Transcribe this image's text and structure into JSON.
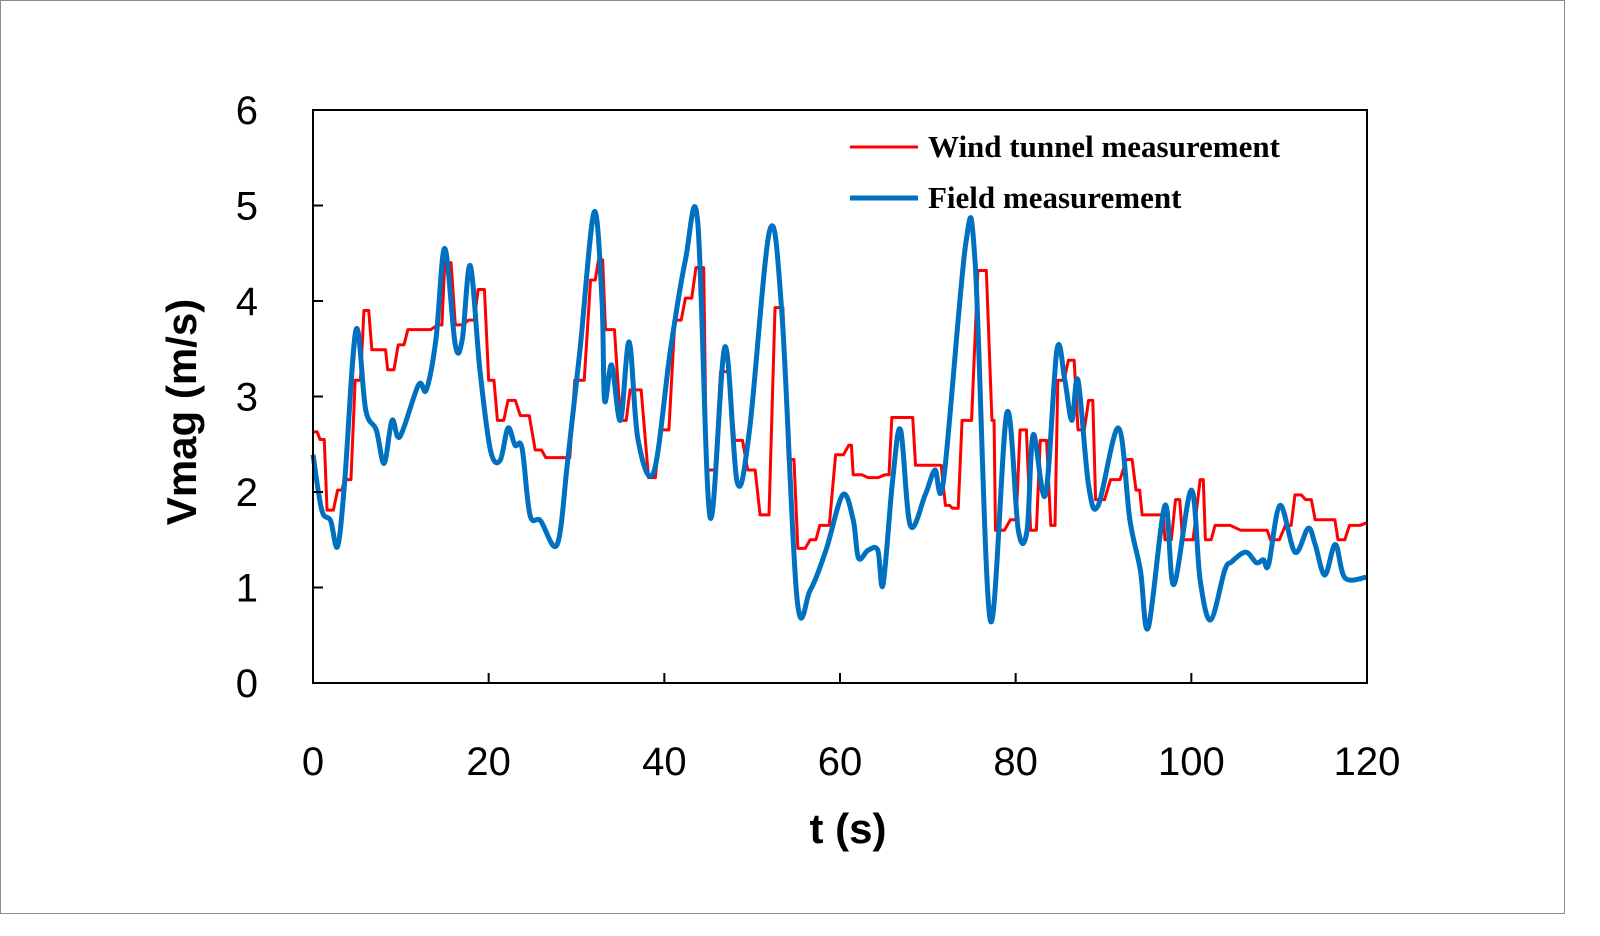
{
  "chart_data": {
    "type": "line",
    "title": "",
    "xlabel": "t (s)",
    "ylabel": "Vmag (m/s)",
    "xlim": [
      0,
      120
    ],
    "ylim": [
      0,
      6
    ],
    "xticks": [
      0,
      20,
      40,
      60,
      80,
      100,
      120
    ],
    "yticks": [
      0,
      1,
      2,
      3,
      4,
      5,
      6
    ],
    "grid": false,
    "legend_position": "top-right",
    "series": [
      {
        "name": "Wind tunnel measurement",
        "color": "#ff0000",
        "style": "step-noisy",
        "x": [
          0,
          0.8,
          1.6,
          2.8,
          3.6,
          4.8,
          5.8,
          6.7,
          7.9,
          8.5,
          9.7,
          10.8,
          12.2,
          14.2,
          15,
          16.2,
          17.7,
          18.8,
          20,
          21,
          22.2,
          23.6,
          25.3,
          26.5,
          28.4,
          29.8,
          31.6,
          32.5,
          33.3,
          35,
          36.1,
          38.2,
          39.5,
          41.2,
          42.4,
          43.6,
          44,
          44.8,
          46.4,
          48,
          49.5,
          50.9,
          52.6,
          54.1,
          55.2,
          56.6,
          57.7,
          59.5,
          61,
          61.5,
          63.2,
          65.1,
          65.9,
          67.8,
          68.6,
          70.8,
          72,
          72.8,
          73.9,
          75.7,
          77.3,
          77.7,
          79.4,
          80.5,
          81.7,
          82.8,
          84,
          84.8,
          86,
          87.1,
          88.3,
          89.1,
          90.8,
          92.6,
          93.7,
          94.4,
          96.5,
          97,
          98.2,
          99,
          101,
          101.6,
          102.7,
          105.6,
          108.1,
          109,
          110.7,
          111.8,
          113,
          114.1,
          115.8,
          116.7,
          118,
          120
        ],
        "y": [
          2.63,
          2.55,
          1.81,
          2.02,
          2.13,
          3.17,
          3.9,
          3.49,
          3.49,
          3.28,
          3.54,
          3.7,
          3.7,
          3.75,
          4.4,
          3.75,
          3.8,
          4.12,
          3.17,
          2.75,
          2.96,
          2.8,
          2.44,
          2.36,
          2.36,
          3.17,
          4.22,
          4.43,
          3.7,
          2.75,
          3.07,
          2.15,
          2.65,
          3.8,
          4.03,
          4.35,
          4.35,
          2.23,
          3.26,
          2.54,
          2.23,
          1.76,
          3.93,
          2.34,
          1.41,
          1.5,
          1.65,
          2.39,
          2.49,
          2.18,
          2.15,
          2.18,
          2.78,
          2.78,
          2.28,
          2.28,
          1.86,
          1.83,
          2.75,
          4.32,
          2.75,
          1.6,
          1.71,
          2.65,
          1.6,
          2.54,
          1.65,
          3.17,
          3.38,
          2.65,
          2.96,
          1.92,
          2.13,
          2.34,
          2.02,
          1.76,
          1.76,
          1.5,
          1.92,
          1.5,
          2.13,
          1.5,
          1.65,
          1.6,
          1.6,
          1.5,
          1.65,
          1.97,
          1.92,
          1.71,
          1.71,
          1.5,
          1.65,
          1.68
        ]
      },
      {
        "name": "Field measurement",
        "color": "#0070c0",
        "style": "smooth",
        "x": [
          0,
          1,
          2,
          2.8,
          3.6,
          4.9,
          6,
          7.2,
          8.1,
          9,
          9.9,
          12,
          12.9,
          14,
          15,
          16.2,
          17,
          17.9,
          19,
          20.2,
          21.3,
          22.2,
          23,
          23.8,
          24.7,
          25.9,
          27.8,
          29,
          30.4,
          32,
          32.9,
          33.2,
          34,
          35,
          36,
          37,
          38.8,
          40.7,
          42.4,
          43.8,
          45.2,
          46.9,
          48.3,
          49.7,
          52,
          53.4,
          55.1,
          56.6,
          58.4,
          60.3,
          61.5,
          62.1,
          63.2,
          64.3,
          64.9,
          66,
          66.9,
          68,
          69.7,
          70.8,
          71.8,
          74.3,
          75.4,
          77.1,
          79,
          80.3,
          81.3,
          82,
          83.4,
          84.7,
          85.6,
          86.4,
          87.1,
          88.3,
          89.4,
          91.7,
          93,
          94.2,
          95.1,
          97,
          98,
          100,
          101,
          102.2,
          103.8,
          104.6,
          106.2,
          107.4,
          108.2,
          108.8,
          110.1,
          111.8,
          113.3,
          114.1,
          115.2,
          116.4,
          117.5,
          120
        ],
        "y": [
          2.39,
          1.81,
          1.7,
          1.43,
          2.1,
          3.7,
          2.86,
          2.65,
          2.3,
          2.75,
          2.58,
          3.12,
          3.07,
          3.6,
          4.55,
          3.54,
          3.6,
          4.37,
          3.28,
          2.44,
          2.33,
          2.67,
          2.49,
          2.46,
          1.76,
          1.7,
          1.45,
          2.33,
          3.49,
          4.93,
          4.01,
          2.96,
          3.33,
          2.75,
          3.57,
          2.55,
          2.21,
          3.49,
          4.43,
          4.83,
          1.74,
          3.52,
          2.1,
          2.65,
          4.74,
          3.85,
          0.89,
          0.97,
          1.39,
          1.97,
          1.71,
          1.31,
          1.39,
          1.39,
          1.03,
          2.13,
          2.65,
          1.65,
          1.97,
          2.23,
          2.13,
          4.59,
          4.38,
          0.66,
          2.83,
          1.6,
          1.6,
          2.6,
          1.97,
          3.49,
          3.17,
          2.75,
          3.17,
          2.07,
          1.86,
          2.67,
          1.71,
          1.18,
          0.58,
          1.86,
          1.03,
          2.02,
          1.08,
          0.66,
          1.18,
          1.27,
          1.37,
          1.26,
          1.29,
          1.24,
          1.86,
          1.37,
          1.62,
          1.45,
          1.13,
          1.45,
          1.1,
          1.11
        ]
      }
    ]
  }
}
